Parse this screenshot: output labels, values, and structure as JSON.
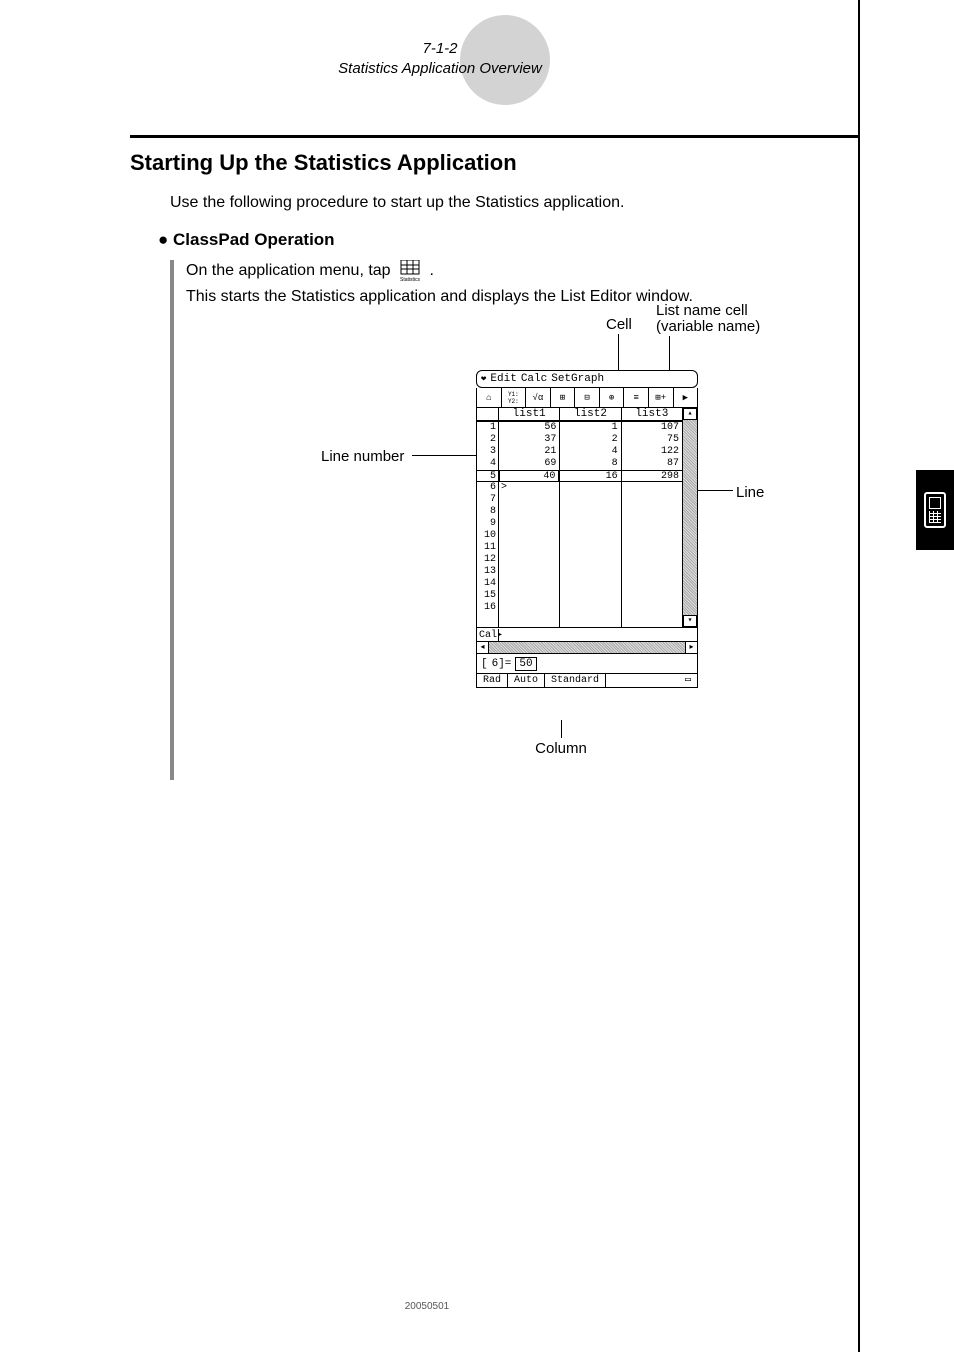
{
  "header": {
    "section_number": "7-1-2",
    "section_title": "Statistics Application Overview"
  },
  "heading": "Starting Up the Statistics Application",
  "intro": "Use the following procedure to start up the Statistics application.",
  "sub_heading": "ClassPad Operation",
  "bullet_glyph": "●",
  "proc": {
    "line1_a": "On the application menu, tap ",
    "icon_label": "Statistics",
    "line1_b": ".",
    "line2": "This starts the Statistics application and displays the List Editor window."
  },
  "labels": {
    "cell": "Cell",
    "list_name": "List name cell",
    "variable_name": "(variable name)",
    "line_number": "Line number",
    "line": "Line",
    "column": "Column"
  },
  "device": {
    "menu": {
      "dropdown_glyph": "❤",
      "items": [
        "Edit",
        "Calc",
        "SetGraph"
      ]
    },
    "toolbar_items": [
      "⌂",
      "Y1:\nY2:",
      "√α",
      "⊞",
      "⊟",
      "⊕",
      "≡",
      "⊞+",
      "▶"
    ],
    "columns": [
      "list1",
      "list2",
      "list3"
    ],
    "line_count": 16,
    "data": {
      "list1": [
        56,
        37,
        21,
        69,
        40
      ],
      "list2": [
        1,
        2,
        4,
        8,
        16
      ],
      "list3": [
        107,
        75,
        122,
        87,
        298
      ]
    },
    "selected_row": 5,
    "selected_col": 0,
    "cursor_glyph": ">",
    "cal_label": "Cal▸",
    "input_prefix": "[",
    "input_index": "6]=",
    "input_value": "50",
    "status": {
      "rad": "Rad",
      "auto": "Auto",
      "standard": "Standard",
      "batt_glyph": "▭"
    },
    "scroll": {
      "up": "▴",
      "down": "▾",
      "left": "◂",
      "right": "▸"
    }
  },
  "footer_code": "20050501",
  "colors": {
    "badge_bg": "#d3d3d3",
    "rule": "#000000",
    "proc_border": "#888888",
    "tab_bg": "#000000"
  }
}
